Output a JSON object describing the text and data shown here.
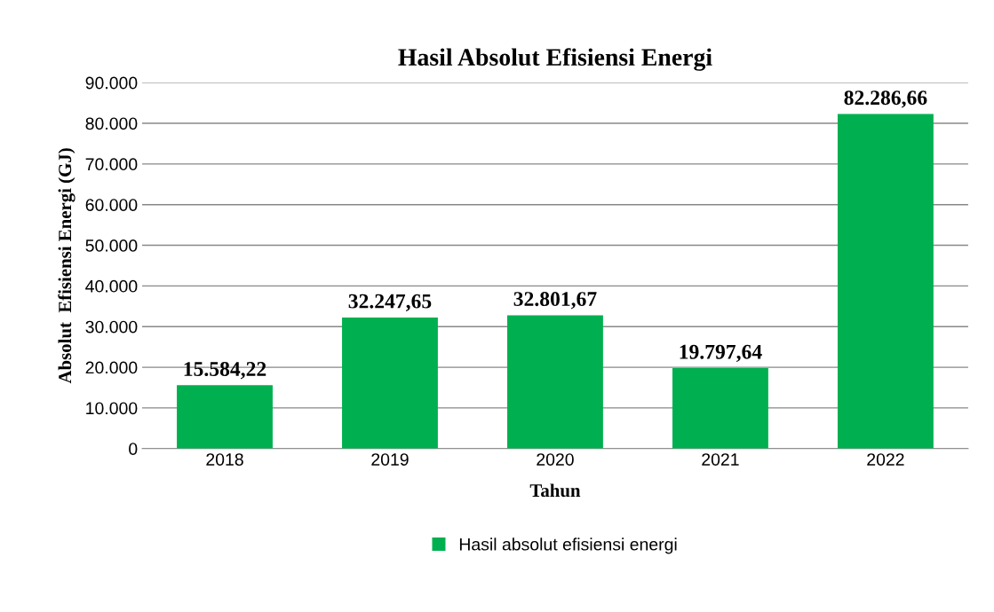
{
  "chart_data": {
    "type": "bar",
    "title": "Hasil Absolut Efisiensi Energi",
    "xlabel": "Tahun",
    "ylabel": "Absolut  Efisiensi Energi (GJ)",
    "categories": [
      "2018",
      "2019",
      "2020",
      "2021",
      "2022"
    ],
    "series": [
      {
        "name": "Hasil absolut efisiensi energi",
        "color": "#00b050",
        "values": [
          15584.22,
          32247.65,
          32801.67,
          19797.64,
          82286.66
        ],
        "value_labels": [
          "15.584,22",
          "32.247,65",
          "32.801,67",
          "19.797,64",
          "82.286,66"
        ]
      }
    ],
    "ylim": [
      0,
      90000
    ],
    "yticks": [
      0,
      {
        "value": 10000,
        "label": "10.000"
      },
      {
        "value": 20000,
        "label": "20.000"
      },
      {
        "value": 30000,
        "label": "30.000"
      },
      {
        "value": 40000,
        "label": "40.000"
      },
      {
        "value": 50000,
        "label": "50.000"
      },
      {
        "value": 60000,
        "label": "60.000"
      },
      {
        "value": 70000,
        "label": "70.000"
      },
      {
        "value": 80000,
        "label": "80.000"
      },
      {
        "value": 90000,
        "label": "90.000"
      }
    ],
    "grid": "y",
    "legend": "bottom"
  }
}
